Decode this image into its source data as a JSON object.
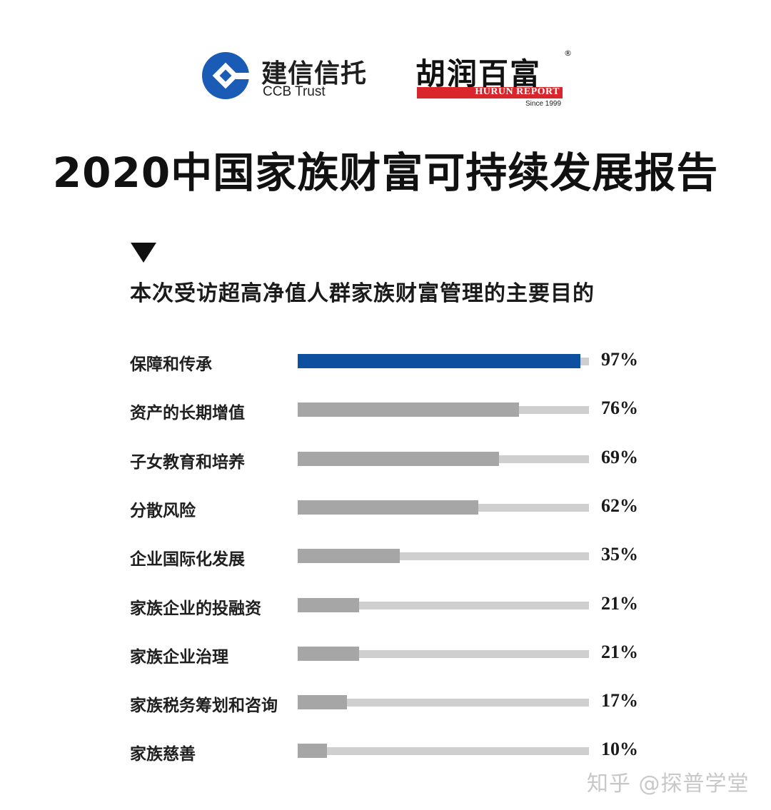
{
  "header": {
    "ccb_logo_cn": "建信信托",
    "ccb_logo_en": "CCB Trust",
    "hurun_logo_cn": "胡润百富",
    "hurun_registered": "®",
    "hurun_logo_en": "HURUN REPORT",
    "hurun_since": "Since 1999",
    "title": "2020中国家族财富可持续发展报告"
  },
  "chart_section": {
    "marker": "▼",
    "subtitle": "本次受访超高净值人群家族财富管理的主要目的"
  },
  "chart_data": {
    "type": "bar",
    "orientation": "horizontal",
    "title": "本次受访超高净值人群家族财富管理的主要目的",
    "categories": [
      "保障和传承",
      "资产的长期增值",
      "子女教育和培养",
      "分散风险",
      "企业国际化发展",
      "家族企业的投融资",
      "家族企业治理",
      "家族税务筹划和咨询",
      "家族慈善"
    ],
    "values": [
      97,
      76,
      69,
      62,
      35,
      21,
      21,
      17,
      10
    ],
    "value_labels": [
      "97%",
      "76%",
      "69%",
      "62%",
      "35%",
      "21%",
      "21%",
      "17%",
      "10%"
    ],
    "xlabel": "",
    "ylabel": "",
    "xlim": [
      0,
      100
    ],
    "unit": "%",
    "grid": false,
    "legend": null,
    "colors": {
      "highlight": "#0f4fa0",
      "bar": "#a6a6a6",
      "track": "#cfcfcf"
    }
  },
  "watermark": "知乎 @探普学堂"
}
